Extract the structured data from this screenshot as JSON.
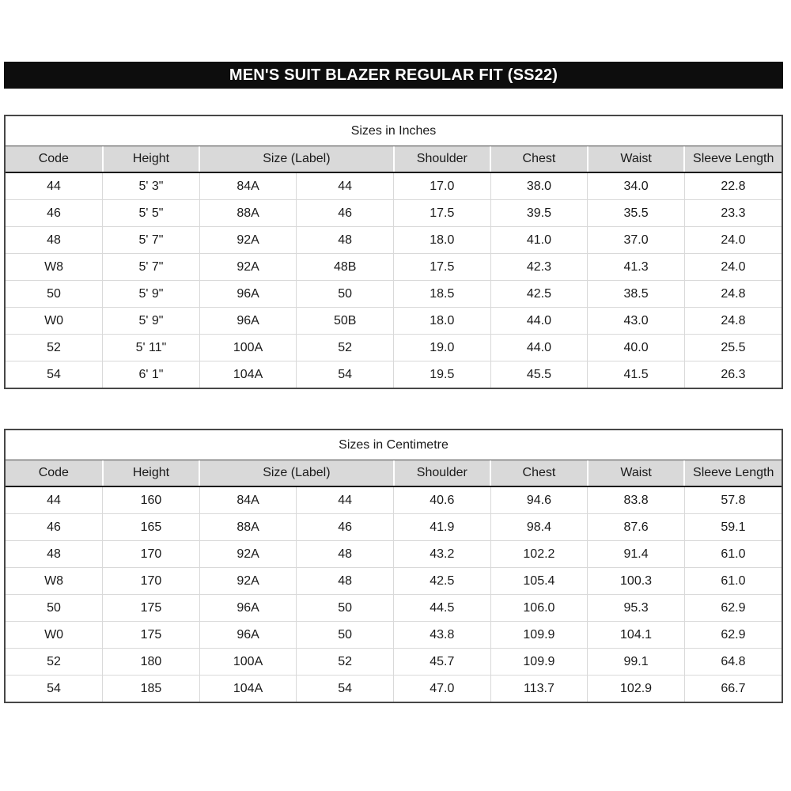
{
  "page_title": "MEN'S SUIT BLAZER REGULAR FIT (SS22)",
  "colors": {
    "title_bar_bg": "#0d0d0d",
    "title_bar_text": "#ffffff",
    "header_bg": "#d9d9d9",
    "grid_line": "#d9d9d9",
    "outer_border": "#474747"
  },
  "tables": [
    {
      "title": "Sizes in Inches",
      "headers": [
        {
          "label": "Code",
          "colspan": 1
        },
        {
          "label": "Height",
          "colspan": 1
        },
        {
          "label": "Size (Label)",
          "colspan": 2
        },
        {
          "label": "Shoulder",
          "colspan": 1
        },
        {
          "label": "Chest",
          "colspan": 1
        },
        {
          "label": "Waist",
          "colspan": 1
        },
        {
          "label": "Sleeve Length",
          "colspan": 1
        }
      ],
      "rows": [
        [
          "44",
          "5' 3\"",
          "84A",
          "44",
          "17.0",
          "38.0",
          "34.0",
          "22.8"
        ],
        [
          "46",
          "5' 5\"",
          "88A",
          "46",
          "17.5",
          "39.5",
          "35.5",
          "23.3"
        ],
        [
          "48",
          "5' 7\"",
          "92A",
          "48",
          "18.0",
          "41.0",
          "37.0",
          "24.0"
        ],
        [
          "W8",
          "5' 7\"",
          "92A",
          "48B",
          "17.5",
          "42.3",
          "41.3",
          "24.0"
        ],
        [
          "50",
          "5' 9\"",
          "96A",
          "50",
          "18.5",
          "42.5",
          "38.5",
          "24.8"
        ],
        [
          "W0",
          "5' 9\"",
          "96A",
          "50B",
          "18.0",
          "44.0",
          "43.0",
          "24.8"
        ],
        [
          "52",
          "5' 11\"",
          "100A",
          "52",
          "19.0",
          "44.0",
          "40.0",
          "25.5"
        ],
        [
          "54",
          "6' 1\"",
          "104A",
          "54",
          "19.5",
          "45.5",
          "41.5",
          "26.3"
        ]
      ]
    },
    {
      "title": "Sizes in Centimetre",
      "headers": [
        {
          "label": "Code",
          "colspan": 1
        },
        {
          "label": "Height",
          "colspan": 1
        },
        {
          "label": "Size (Label)",
          "colspan": 2
        },
        {
          "label": "Shoulder",
          "colspan": 1
        },
        {
          "label": "Chest",
          "colspan": 1
        },
        {
          "label": "Waist",
          "colspan": 1
        },
        {
          "label": "Sleeve Length",
          "colspan": 1
        }
      ],
      "rows": [
        [
          "44",
          "160",
          "84A",
          "44",
          "40.6",
          "94.6",
          "83.8",
          "57.8"
        ],
        [
          "46",
          "165",
          "88A",
          "46",
          "41.9",
          "98.4",
          "87.6",
          "59.1"
        ],
        [
          "48",
          "170",
          "92A",
          "48",
          "43.2",
          "102.2",
          "91.4",
          "61.0"
        ],
        [
          "W8",
          "170",
          "92A",
          "48",
          "42.5",
          "105.4",
          "100.3",
          "61.0"
        ],
        [
          "50",
          "175",
          "96A",
          "50",
          "44.5",
          "106.0",
          "95.3",
          "62.9"
        ],
        [
          "W0",
          "175",
          "96A",
          "50",
          "43.8",
          "109.9",
          "104.1",
          "62.9"
        ],
        [
          "52",
          "180",
          "100A",
          "52",
          "45.7",
          "109.9",
          "99.1",
          "64.8"
        ],
        [
          "54",
          "185",
          "104A",
          "54",
          "47.0",
          "113.7",
          "102.9",
          "66.7"
        ]
      ]
    }
  ]
}
